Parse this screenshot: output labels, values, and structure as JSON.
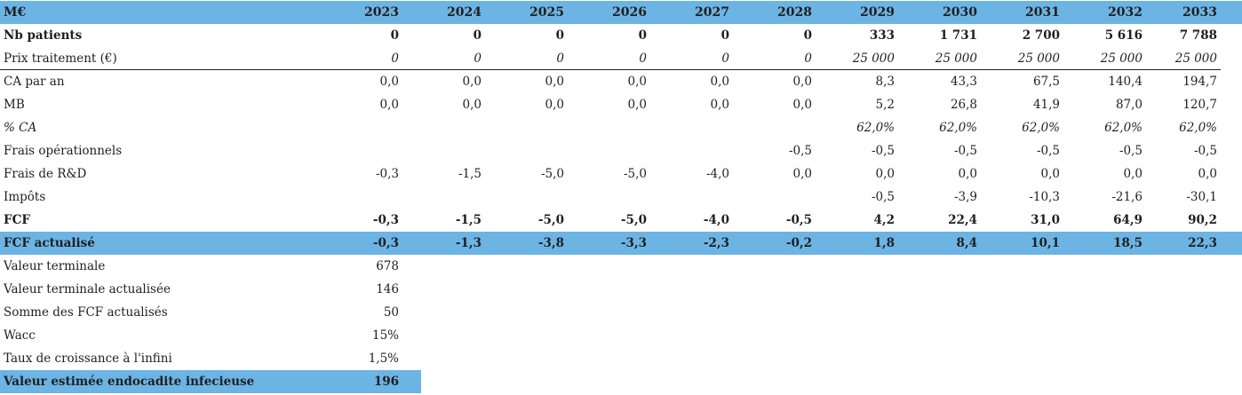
{
  "header": {
    "title": "M€",
    "years": [
      "2023",
      "2024",
      "2025",
      "2026",
      "2027",
      "2028",
      "2029",
      "2030",
      "2031",
      "2032",
      "2033"
    ]
  },
  "rows": [
    {
      "label": "Nb patients",
      "values": [
        "0",
        "0",
        "0",
        "0",
        "0",
        "0",
        "333",
        "1 731",
        "2 700",
        "5 616",
        "7 788"
      ]
    },
    {
      "label": "Prix traitement (€)",
      "values": [
        "0",
        "0",
        "0",
        "0",
        "0",
        "0",
        "25 000",
        "25 000",
        "25 000",
        "25 000",
        "25 000"
      ]
    },
    {
      "label": "CA par an",
      "values": [
        "0,0",
        "0,0",
        "0,0",
        "0,0",
        "0,0",
        "0,0",
        "8,3",
        "43,3",
        "67,5",
        "140,4",
        "194,7"
      ]
    },
    {
      "label": "MB",
      "values": [
        "0,0",
        "0,0",
        "0,0",
        "0,0",
        "0,0",
        "0,0",
        "5,2",
        "26,8",
        "41,9",
        "87,0",
        "120,7"
      ]
    },
    {
      "label": "% CA",
      "values": [
        "",
        "",
        "",
        "",
        "",
        "",
        "62,0%",
        "62,0%",
        "62,0%",
        "62,0%",
        "62,0%"
      ]
    },
    {
      "label": "Frais opérationnels",
      "values": [
        "",
        "",
        "",
        "",
        "",
        "-0,5",
        "-0,5",
        "-0,5",
        "-0,5",
        "-0,5",
        "-0,5"
      ]
    },
    {
      "label": "Frais de R&D",
      "values": [
        "-0,3",
        "-1,5",
        "-5,0",
        "-5,0",
        "-4,0",
        "0,0",
        "0,0",
        "0,0",
        "0,0",
        "0,0",
        "0,0"
      ]
    },
    {
      "label": "Impôts",
      "values": [
        "",
        "",
        "",
        "",
        "",
        "",
        "-0,5",
        "-3,9",
        "-10,3",
        "-21,6",
        "-30,1"
      ]
    },
    {
      "label": "FCF",
      "values": [
        "-0,3",
        "-1,5",
        "-5,0",
        "-5,0",
        "-4,0",
        "-0,5",
        "4,2",
        "22,4",
        "31,0",
        "64,9",
        "90,2"
      ]
    },
    {
      "label": "FCF actualisé",
      "values": [
        "-0,3",
        "-1,3",
        "-3,8",
        "-3,3",
        "-2,3",
        "-0,2",
        "1,8",
        "8,4",
        "10,1",
        "18,5",
        "22,3"
      ]
    }
  ],
  "summary": [
    {
      "label": "Valeur terminale",
      "value": "678"
    },
    {
      "label": "Valeur terminale actualisée",
      "value": "146"
    },
    {
      "label": "Somme des FCF actualisés",
      "value": "50"
    },
    {
      "label": "Wacc",
      "value": "15%"
    },
    {
      "label": "Taux de croissance à l'infini",
      "value": "1,5%"
    },
    {
      "label": "Valeur estimée endocadite infecieuse",
      "value": "196"
    }
  ],
  "colors": {
    "band": "#6cb4e4",
    "text": "#1f1f1f"
  }
}
